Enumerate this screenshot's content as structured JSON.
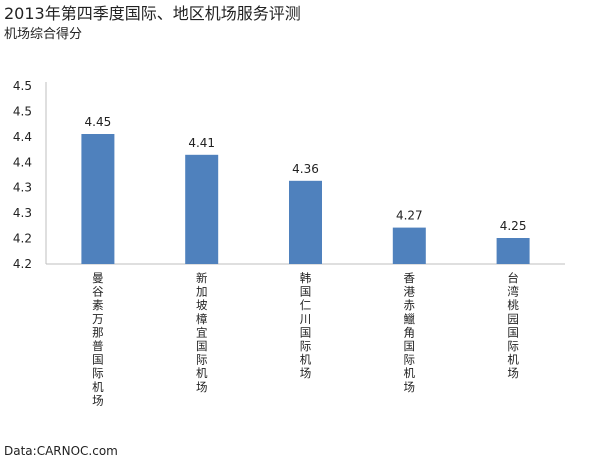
{
  "title": "2013年第四季度国际、地区机场服务评测",
  "subtitle": "机场综合得分",
  "source": "Data:CARNOC.com",
  "chart_data": {
    "type": "bar",
    "categories": [
      "曼谷素万那普国际机场",
      "新加坡樟宜国际机场",
      "韩国仁川国际机场",
      "香港赤鱲角国际机场",
      "台湾桃园国际机场"
    ],
    "values": [
      4.45,
      4.41,
      4.36,
      4.27,
      4.25
    ],
    "data_labels": [
      "4.45",
      "4.41",
      "4.36",
      "4.27",
      "4.25"
    ],
    "y_tick_labels": [
      "4.2",
      "4.2",
      "4.3",
      "4.3",
      "4.4",
      "4.4",
      "4.5",
      "4.5"
    ],
    "ylim": [
      4.2,
      4.55
    ],
    "grid": false,
    "legend": "none",
    "bar_color": "#4f81bd"
  }
}
